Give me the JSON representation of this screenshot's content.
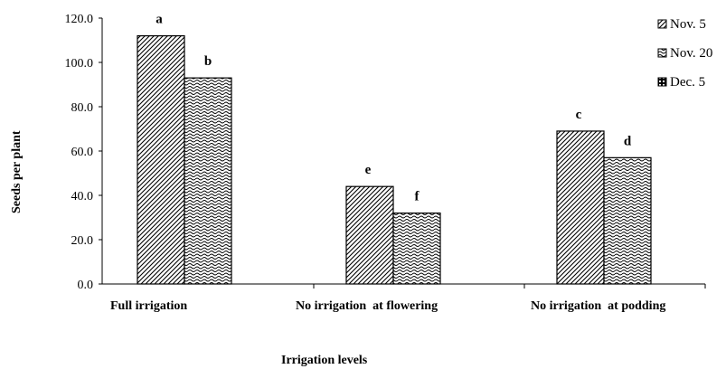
{
  "chart_data": {
    "type": "bar",
    "categories": [
      "Full irrigation",
      "No irrigation  at flowering",
      "No irrigation  at podding"
    ],
    "series": [
      {
        "name": "Nov. 5",
        "values": [
          112.0,
          44.0,
          69.0
        ],
        "letters": [
          "a",
          "e",
          "c"
        ]
      },
      {
        "name": "Nov. 20",
        "values": [
          93.0,
          32.0,
          57.0
        ],
        "letters": [
          "b",
          "f",
          "d"
        ]
      },
      {
        "name": "Dec. 5",
        "values": [
          null,
          null,
          null
        ],
        "letters": [
          null,
          null,
          null
        ]
      }
    ],
    "xlabel": "Irrigation  levels",
    "ylabel": "Seeds per plant",
    "ylim": [
      0,
      120
    ],
    "yticks": [
      "0.0",
      "20.0",
      "40.0",
      "60.0",
      "80.0",
      "100.0",
      "120.0"
    ],
    "legend_position": "top-right",
    "grid": false
  }
}
